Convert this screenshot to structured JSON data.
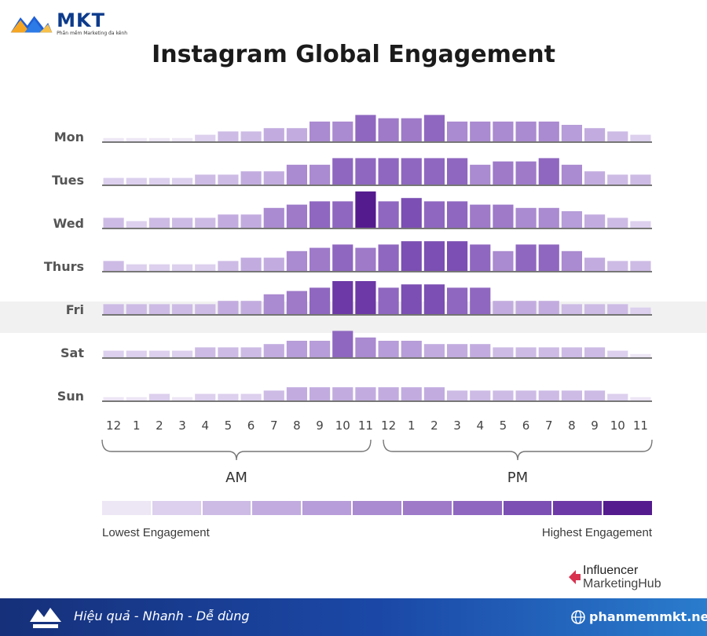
{
  "brand": {
    "logo_name": "MKT",
    "logo_tagline": "Phần mềm Marketing đa kênh",
    "watermark_text": "MKT"
  },
  "title": "Instagram Global Engagement",
  "chart_data": {
    "type": "heatmap",
    "title": "Instagram Global Engagement",
    "rows": [
      "Mon",
      "Tues",
      "Wed",
      "Thurs",
      "Fri",
      "Sat",
      "Sun"
    ],
    "hour_labels": [
      "12",
      "1",
      "2",
      "3",
      "4",
      "5",
      "6",
      "7",
      "8",
      "9",
      "10",
      "11",
      "12",
      "1",
      "2",
      "3",
      "4",
      "5",
      "6",
      "7",
      "8",
      "9",
      "10",
      "11"
    ],
    "period_labels": [
      "AM",
      "PM"
    ],
    "scale": {
      "min": 1,
      "max": 11
    },
    "values": [
      [
        1,
        1,
        1,
        1,
        2,
        3,
        3,
        4,
        4,
        6,
        6,
        8,
        7,
        7,
        8,
        6,
        6,
        6,
        6,
        6,
        5,
        4,
        3,
        2
      ],
      [
        2,
        2,
        2,
        2,
        3,
        3,
        4,
        4,
        6,
        6,
        8,
        8,
        8,
        8,
        8,
        8,
        6,
        7,
        7,
        8,
        6,
        4,
        3,
        3
      ],
      [
        3,
        2,
        3,
        3,
        3,
        4,
        4,
        6,
        7,
        8,
        8,
        11,
        8,
        9,
        8,
        8,
        7,
        7,
        6,
        6,
        5,
        4,
        3,
        2
      ],
      [
        3,
        2,
        2,
        2,
        2,
        3,
        4,
        4,
        6,
        7,
        8,
        7,
        8,
        9,
        9,
        9,
        8,
        6,
        8,
        8,
        6,
        4,
        3,
        3
      ],
      [
        3,
        3,
        3,
        3,
        3,
        4,
        4,
        6,
        7,
        8,
        10,
        10,
        8,
        9,
        9,
        8,
        8,
        4,
        4,
        4,
        3,
        3,
        3,
        2
      ],
      [
        2,
        2,
        2,
        2,
        3,
        3,
        3,
        4,
        5,
        5,
        8,
        6,
        5,
        5,
        4,
        4,
        4,
        3,
        3,
        3,
        3,
        3,
        2,
        1
      ],
      [
        1,
        1,
        2,
        1,
        2,
        2,
        2,
        3,
        4,
        4,
        4,
        4,
        4,
        4,
        4,
        3,
        3,
        3,
        3,
        3,
        3,
        3,
        2,
        1
      ]
    ],
    "colors": [
      "#ede6f5",
      "#dcd0ee",
      "#cdbbe5",
      "#c2acdf",
      "#b79dd9",
      "#aa8ad0",
      "#9e7ac9",
      "#8f67c0",
      "#7b4fb3",
      "#6c39a6",
      "#541b8f"
    ],
    "legend": {
      "low_label": "Lowest Engagement",
      "high_label": "Highest Engagement"
    }
  },
  "credit": {
    "line1": "Influencer",
    "line2": "MarketingHub"
  },
  "footer": {
    "slogan": "Hiệu quả - Nhanh - Dễ dùng",
    "url": "phanmemmkt.net"
  },
  "colors": {
    "footer_start": "#16307a",
    "footer_end": "#2a7ccd",
    "brand_blue": "#0d3b8c",
    "brand_orange": "#f5a623"
  }
}
